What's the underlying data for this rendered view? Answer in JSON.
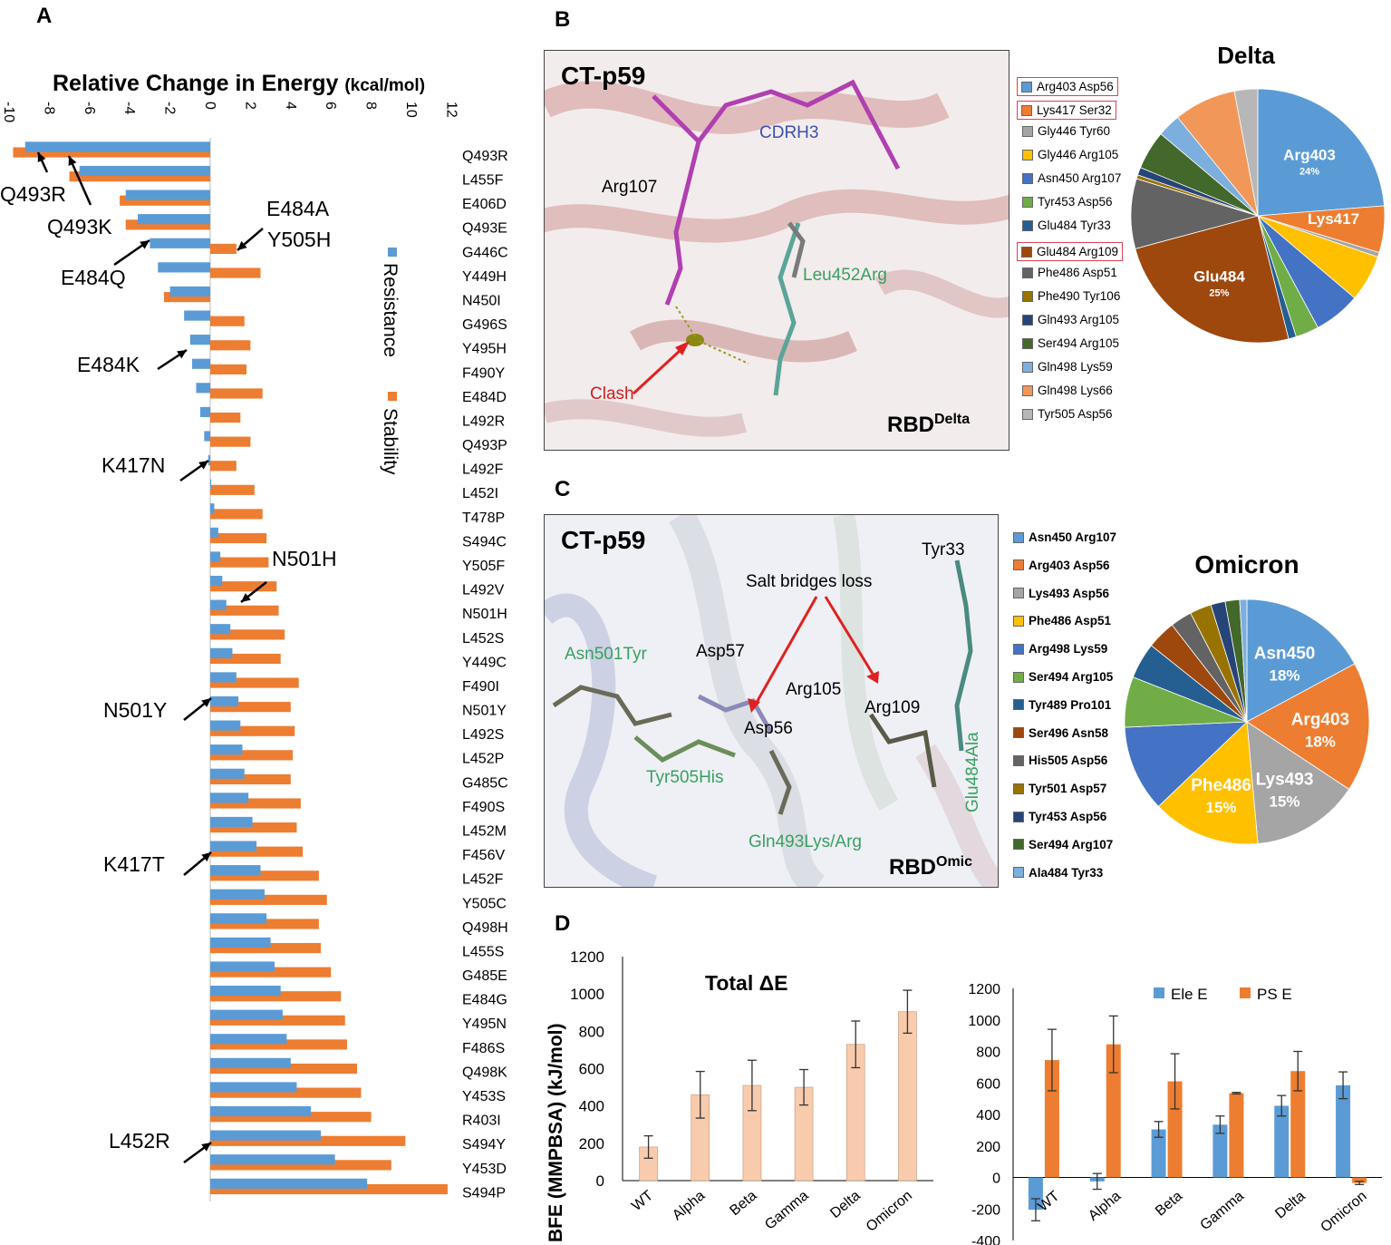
{
  "panels": {
    "A": {
      "letter": "A",
      "chart_data": {
        "type": "bar",
        "title": "Relative Change in Energy",
        "title_unit": "(kcal/mol)",
        "xlim": [
          -10,
          12
        ],
        "xticks": [
          "-10",
          "-8",
          "-6",
          "-4",
          "-2",
          "0",
          "2",
          "4",
          "6",
          "8",
          "10",
          "12"
        ],
        "legend": [
          "Resistance",
          "Stability"
        ],
        "categories": [
          "Q493R",
          "L455F",
          "E406D",
          "Q493E",
          "G446C",
          "Y449H",
          "N450I",
          "G496S",
          "Y495H",
          "F490Y",
          "E484D",
          "L492R",
          "Q493P",
          "L492F",
          "L452I",
          "T478P",
          "S494C",
          "Y505F",
          "L492V",
          "N501H",
          "L452S",
          "Y449C",
          "F490I",
          "N501Y",
          "L492S",
          "L452P",
          "G485C",
          "F490S",
          "L452M",
          "F456V",
          "L452F",
          "Y505C",
          "Q498H",
          "L455S",
          "G485E",
          "E484G",
          "Y495N",
          "F486S",
          "Q498K",
          "Y453S",
          "R403I",
          "S494Y",
          "Y453D",
          "S494P"
        ],
        "series": [
          {
            "name": "Resistance",
            "values": [
              -9.2,
              -6.5,
              -4.2,
              -3.6,
              -3.0,
              -2.6,
              -2.0,
              -1.3,
              -1.0,
              -0.9,
              -0.7,
              -0.5,
              -0.3,
              -0.1,
              0.05,
              0.2,
              0.4,
              0.5,
              0.6,
              0.8,
              1.0,
              1.1,
              1.3,
              1.4,
              1.5,
              1.6,
              1.7,
              1.9,
              2.1,
              2.3,
              2.5,
              2.7,
              2.8,
              3.0,
              3.2,
              3.5,
              3.6,
              3.8,
              4.0,
              4.3,
              5.0,
              5.5,
              6.2,
              7.8
            ]
          },
          {
            "name": "Stability",
            "values": [
              -9.8,
              -7.0,
              -4.5,
              -4.2,
              1.3,
              2.5,
              -2.3,
              1.7,
              2.0,
              1.8,
              2.6,
              1.5,
              2.0,
              1.3,
              2.2,
              2.6,
              2.8,
              2.9,
              3.3,
              3.4,
              3.7,
              3.5,
              4.4,
              4.0,
              4.2,
              4.1,
              4.0,
              4.5,
              4.3,
              4.6,
              5.4,
              5.8,
              5.4,
              5.5,
              6.0,
              6.5,
              6.7,
              6.8,
              7.3,
              7.5,
              8.0,
              9.7,
              9.0,
              11.8
            ]
          }
        ],
        "annotations": [
          "Q493R",
          "Q493K",
          "E484A",
          "Y505H",
          "E484Q",
          "E484K",
          "K417N",
          "N501H",
          "N501Y",
          "K417T",
          "L452R"
        ]
      }
    },
    "B": {
      "letter": "B",
      "title": "CT-p59",
      "labels": {
        "cdrh3": "CDRH3",
        "arg107": "Arg107",
        "leu452arg": "Leu452Arg",
        "clash": "Clash",
        "rbd": "RBD",
        "rbd_sup": "Delta"
      },
      "legend": [
        {
          "label": "Arg403  Asp56",
          "color": "#5b9bd5",
          "boxed": true
        },
        {
          "label": "Lys417  Ser32",
          "color": "#ed7d31",
          "boxed": true
        },
        {
          "label": "Gly446  Tyr60",
          "color": "#a5a5a5",
          "boxed": false
        },
        {
          "label": "Gly446  Arg105",
          "color": "#ffc000",
          "boxed": false
        },
        {
          "label": "Asn450  Arg107",
          "color": "#4472c4",
          "boxed": false
        },
        {
          "label": "Tyr453  Asp56",
          "color": "#70ad47",
          "boxed": false
        },
        {
          "label": "Glu484  Tyr33",
          "color": "#255e91",
          "boxed": false
        },
        {
          "label": "Glu484  Arg109",
          "color": "#9e480e",
          "boxed": true
        },
        {
          "label": "Phe486  Asp51",
          "color": "#636363",
          "boxed": false
        },
        {
          "label": "Phe490  Tyr106",
          "color": "#997300",
          "boxed": false
        },
        {
          "label": "Gln493  Arg105",
          "color": "#264478",
          "boxed": false
        },
        {
          "label": "Ser494  Arg105",
          "color": "#43682b",
          "boxed": false
        },
        {
          "label": "Gln498  Lys59",
          "color": "#7cafdd",
          "boxed": false
        },
        {
          "label": "Gln498  Lys66",
          "color": "#f1975a",
          "boxed": false
        },
        {
          "label": "Tyr505  Asp56",
          "color": "#b7b7b7",
          "boxed": false
        }
      ],
      "chart_data": {
        "type": "pie",
        "title": "Delta",
        "labels": [
          "Arg403",
          "Lys417",
          "Gly446-Tyr60",
          "Gly446-Arg105",
          "Asn450",
          "Tyr453",
          "Glu484-Tyr33",
          "Glu484",
          "Phe486",
          "Phe490",
          "Gln493",
          "Ser494",
          "Gln498-Lys59",
          "Gln498-Lys66",
          "Tyr505"
        ],
        "values": [
          24,
          6,
          0.6,
          6,
          6,
          3,
          1,
          25,
          9,
          0.5,
          1,
          5,
          3,
          8,
          3
        ],
        "slice_text": [
          "Arg403",
          "Lys417",
          "",
          "",
          "",
          "",
          "",
          "Glu484",
          "",
          "",
          "",
          "",
          "",
          "",
          ""
        ],
        "slice_pct": [
          "24%",
          "",
          "",
          "",
          "",
          "",
          "",
          "25%",
          "",
          "",
          "",
          "",
          "",
          "",
          ""
        ]
      }
    },
    "C": {
      "letter": "C",
      "title": "CT-p59",
      "labels": {
        "tyr33": "Tyr33",
        "salt": "Salt bridges loss",
        "asn501tyr": "Asn501Tyr",
        "asp57": "Asp57",
        "arg105": "Arg105",
        "arg109": "Arg109",
        "asp56": "Asp56",
        "tyr505his": "Tyr505His",
        "gln493": "Gln493Lys/Arg",
        "glu484ala": "Glu484Ala",
        "rbd": "RBD",
        "rbd_sup": "Omic"
      },
      "legend": [
        {
          "label": "Asn450  Arg107",
          "color": "#5b9bd5"
        },
        {
          "label": "Arg403  Asp56",
          "color": "#ed7d31"
        },
        {
          "label": "Lys493  Asp56",
          "color": "#a5a5a5"
        },
        {
          "label": "Phe486  Asp51",
          "color": "#ffc000"
        },
        {
          "label": "Arg498  Lys59",
          "color": "#4472c4"
        },
        {
          "label": "Ser494  Arg105",
          "color": "#70ad47"
        },
        {
          "label": "Tyr489  Pro101",
          "color": "#255e91"
        },
        {
          "label": "Ser496  Asn58",
          "color": "#9e480e"
        },
        {
          "label": "His505  Asp56",
          "color": "#636363"
        },
        {
          "label": "Tyr501  Asp57",
          "color": "#997300"
        },
        {
          "label": "Tyr453  Asp56",
          "color": "#264478"
        },
        {
          "label": "Ser494  Arg107",
          "color": "#43682b"
        },
        {
          "label": "Ala484  Tyr33",
          "color": "#7cafdd"
        }
      ],
      "chart_data": {
        "type": "pie",
        "title": "Omicron",
        "labels": [
          "Asn450",
          "Arg403",
          "Lys493",
          "Phe486",
          "Arg498",
          "Ser494-Arg105",
          "Tyr489",
          "Ser496",
          "His505",
          "Tyr501",
          "Tyr453",
          "Ser494-Arg107",
          "Ala484"
        ],
        "values": [
          18,
          18,
          15,
          15,
          12,
          7,
          5,
          4,
          3,
          3,
          2,
          2,
          1
        ],
        "slice_text": [
          "Asn450",
          "Arg403",
          "Lys493",
          "Phe486",
          "",
          "",
          "",
          "",
          "",
          "",
          "",
          "",
          ""
        ],
        "slice_pct": [
          "18%",
          "18%",
          "15%",
          "15%",
          "",
          "",
          "",
          "",
          "",
          "",
          "",
          "",
          ""
        ]
      }
    },
    "D": {
      "letter": "D",
      "ylabel": "BFE (MMPBSA) (kJ/mol)",
      "chart_data": [
        {
          "type": "bar",
          "title": "Total ΔE",
          "categories": [
            "WT",
            "Alpha",
            "Beta",
            "Gamma",
            "Delta",
            "Omicron"
          ],
          "values": [
            180,
            460,
            510,
            500,
            730,
            905
          ],
          "errors": [
            60,
            125,
            135,
            95,
            125,
            115
          ],
          "ylim": [
            0,
            1200
          ],
          "yticks": [
            "0",
            "200",
            "400",
            "600",
            "800",
            "1000",
            "1200"
          ],
          "color": "#f8cbad"
        },
        {
          "type": "bar",
          "categories": [
            "WT",
            "Alpha",
            "Beta",
            "Gamma",
            "Delta",
            "Omicron"
          ],
          "series": [
            {
              "name": "Ele E",
              "values": [
                -205,
                -25,
                305,
                335,
                455,
                585
              ],
              "errors": [
                70,
                50,
                50,
                55,
                65,
                85
              ],
              "color": "#5b9bd5"
            },
            {
              "name": "PS E",
              "values": [
                745,
                845,
                610,
                535,
                675,
                -35
              ],
              "errors": [
                195,
                180,
                175,
                5,
                125,
                10
              ],
              "color": "#ed7d31"
            }
          ],
          "ylim": [
            -400,
            1200
          ],
          "yticks": [
            "-400",
            "-200",
            "0",
            "200",
            "400",
            "600",
            "800",
            "1000",
            "1200"
          ]
        }
      ]
    }
  }
}
